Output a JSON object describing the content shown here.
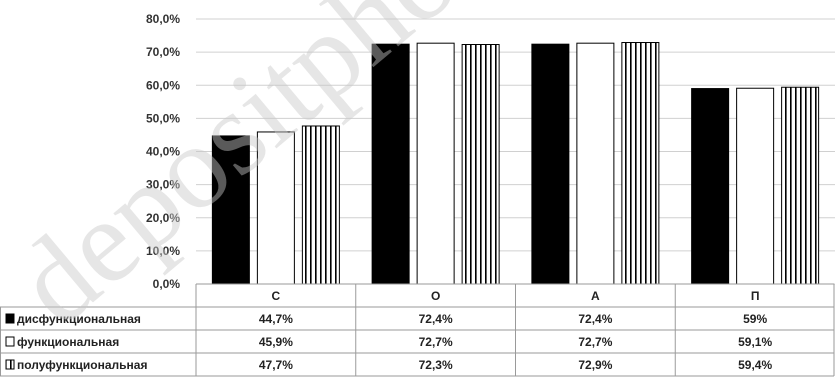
{
  "watermark": "depositphotos",
  "chart_data": {
    "type": "bar",
    "categories": [
      "С",
      "О",
      "А",
      "П"
    ],
    "ylim": [
      0,
      80
    ],
    "yticks": [
      "0,0%",
      "10,0%",
      "20,0%",
      "30,0%",
      "40,0%",
      "50,0%",
      "60,0%",
      "70,0%",
      "80,0%"
    ],
    "grid": true,
    "legend": "table-left",
    "series": [
      {
        "name": "дисфункциональная",
        "fill": "solid-black",
        "values": [
          44.7,
          72.4,
          72.4,
          59.0
        ],
        "labels": [
          "44,7%",
          "72,4%",
          "72,4%",
          "59%"
        ]
      },
      {
        "name": "функциональная",
        "fill": "white",
        "values": [
          45.9,
          72.7,
          72.7,
          59.1
        ],
        "labels": [
          "45,9%",
          "72,7%",
          "72,7%",
          "59,1%"
        ]
      },
      {
        "name": "полуфункциональная",
        "fill": "vertical-stripes",
        "values": [
          47.7,
          72.3,
          72.9,
          59.4
        ],
        "labels": [
          "47,7%",
          "72,3%",
          "72,9%",
          "59,4%"
        ]
      }
    ]
  },
  "colors": {
    "bar_black": "#000000",
    "bar_white": "#ffffff",
    "stroke": "#000000",
    "grid": "#d0d0d0",
    "table_border": "#9a9a9a"
  }
}
